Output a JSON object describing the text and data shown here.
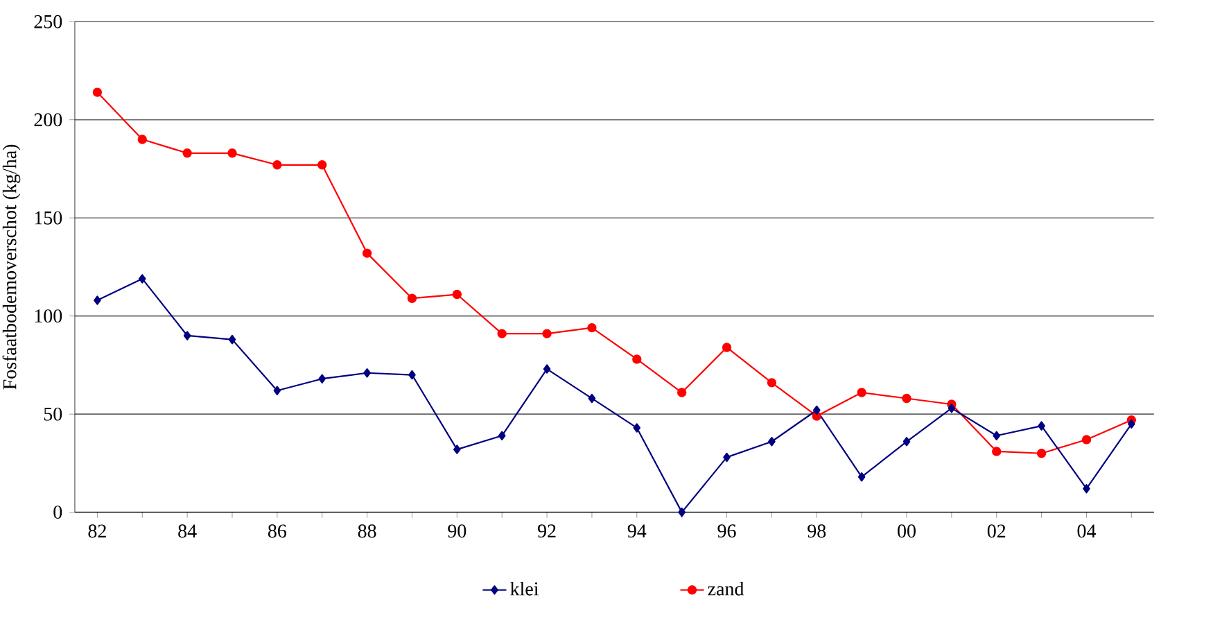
{
  "chart_data": {
    "type": "line",
    "ylabel": "Fosfaatbodemoverschot (kg/ha)",
    "categories": [
      "82",
      null,
      "84",
      null,
      "86",
      null,
      "88",
      null,
      "90",
      null,
      "92",
      null,
      "94",
      null,
      "96",
      null,
      "98",
      null,
      "00",
      null,
      "02",
      null,
      "04",
      null
    ],
    "series": [
      {
        "name": "klei",
        "color": "#000080",
        "marker": "diamond",
        "values": [
          108,
          119,
          90,
          88,
          62,
          68,
          71,
          70,
          32,
          39,
          73,
          58,
          43,
          0,
          28,
          36,
          52,
          18,
          36,
          53,
          39,
          44,
          12,
          45
        ]
      },
      {
        "name": "zand",
        "color": "#ff0000",
        "marker": "circle",
        "values": [
          214,
          190,
          183,
          183,
          177,
          177,
          132,
          109,
          111,
          91,
          91,
          94,
          78,
          61,
          84,
          66,
          49,
          61,
          58,
          55,
          31,
          30,
          37,
          47
        ]
      }
    ],
    "ylim": [
      0,
      250
    ],
    "yticks": [
      0,
      50,
      100,
      150,
      200,
      250
    ],
    "grid": "y",
    "legend": "bottom"
  }
}
